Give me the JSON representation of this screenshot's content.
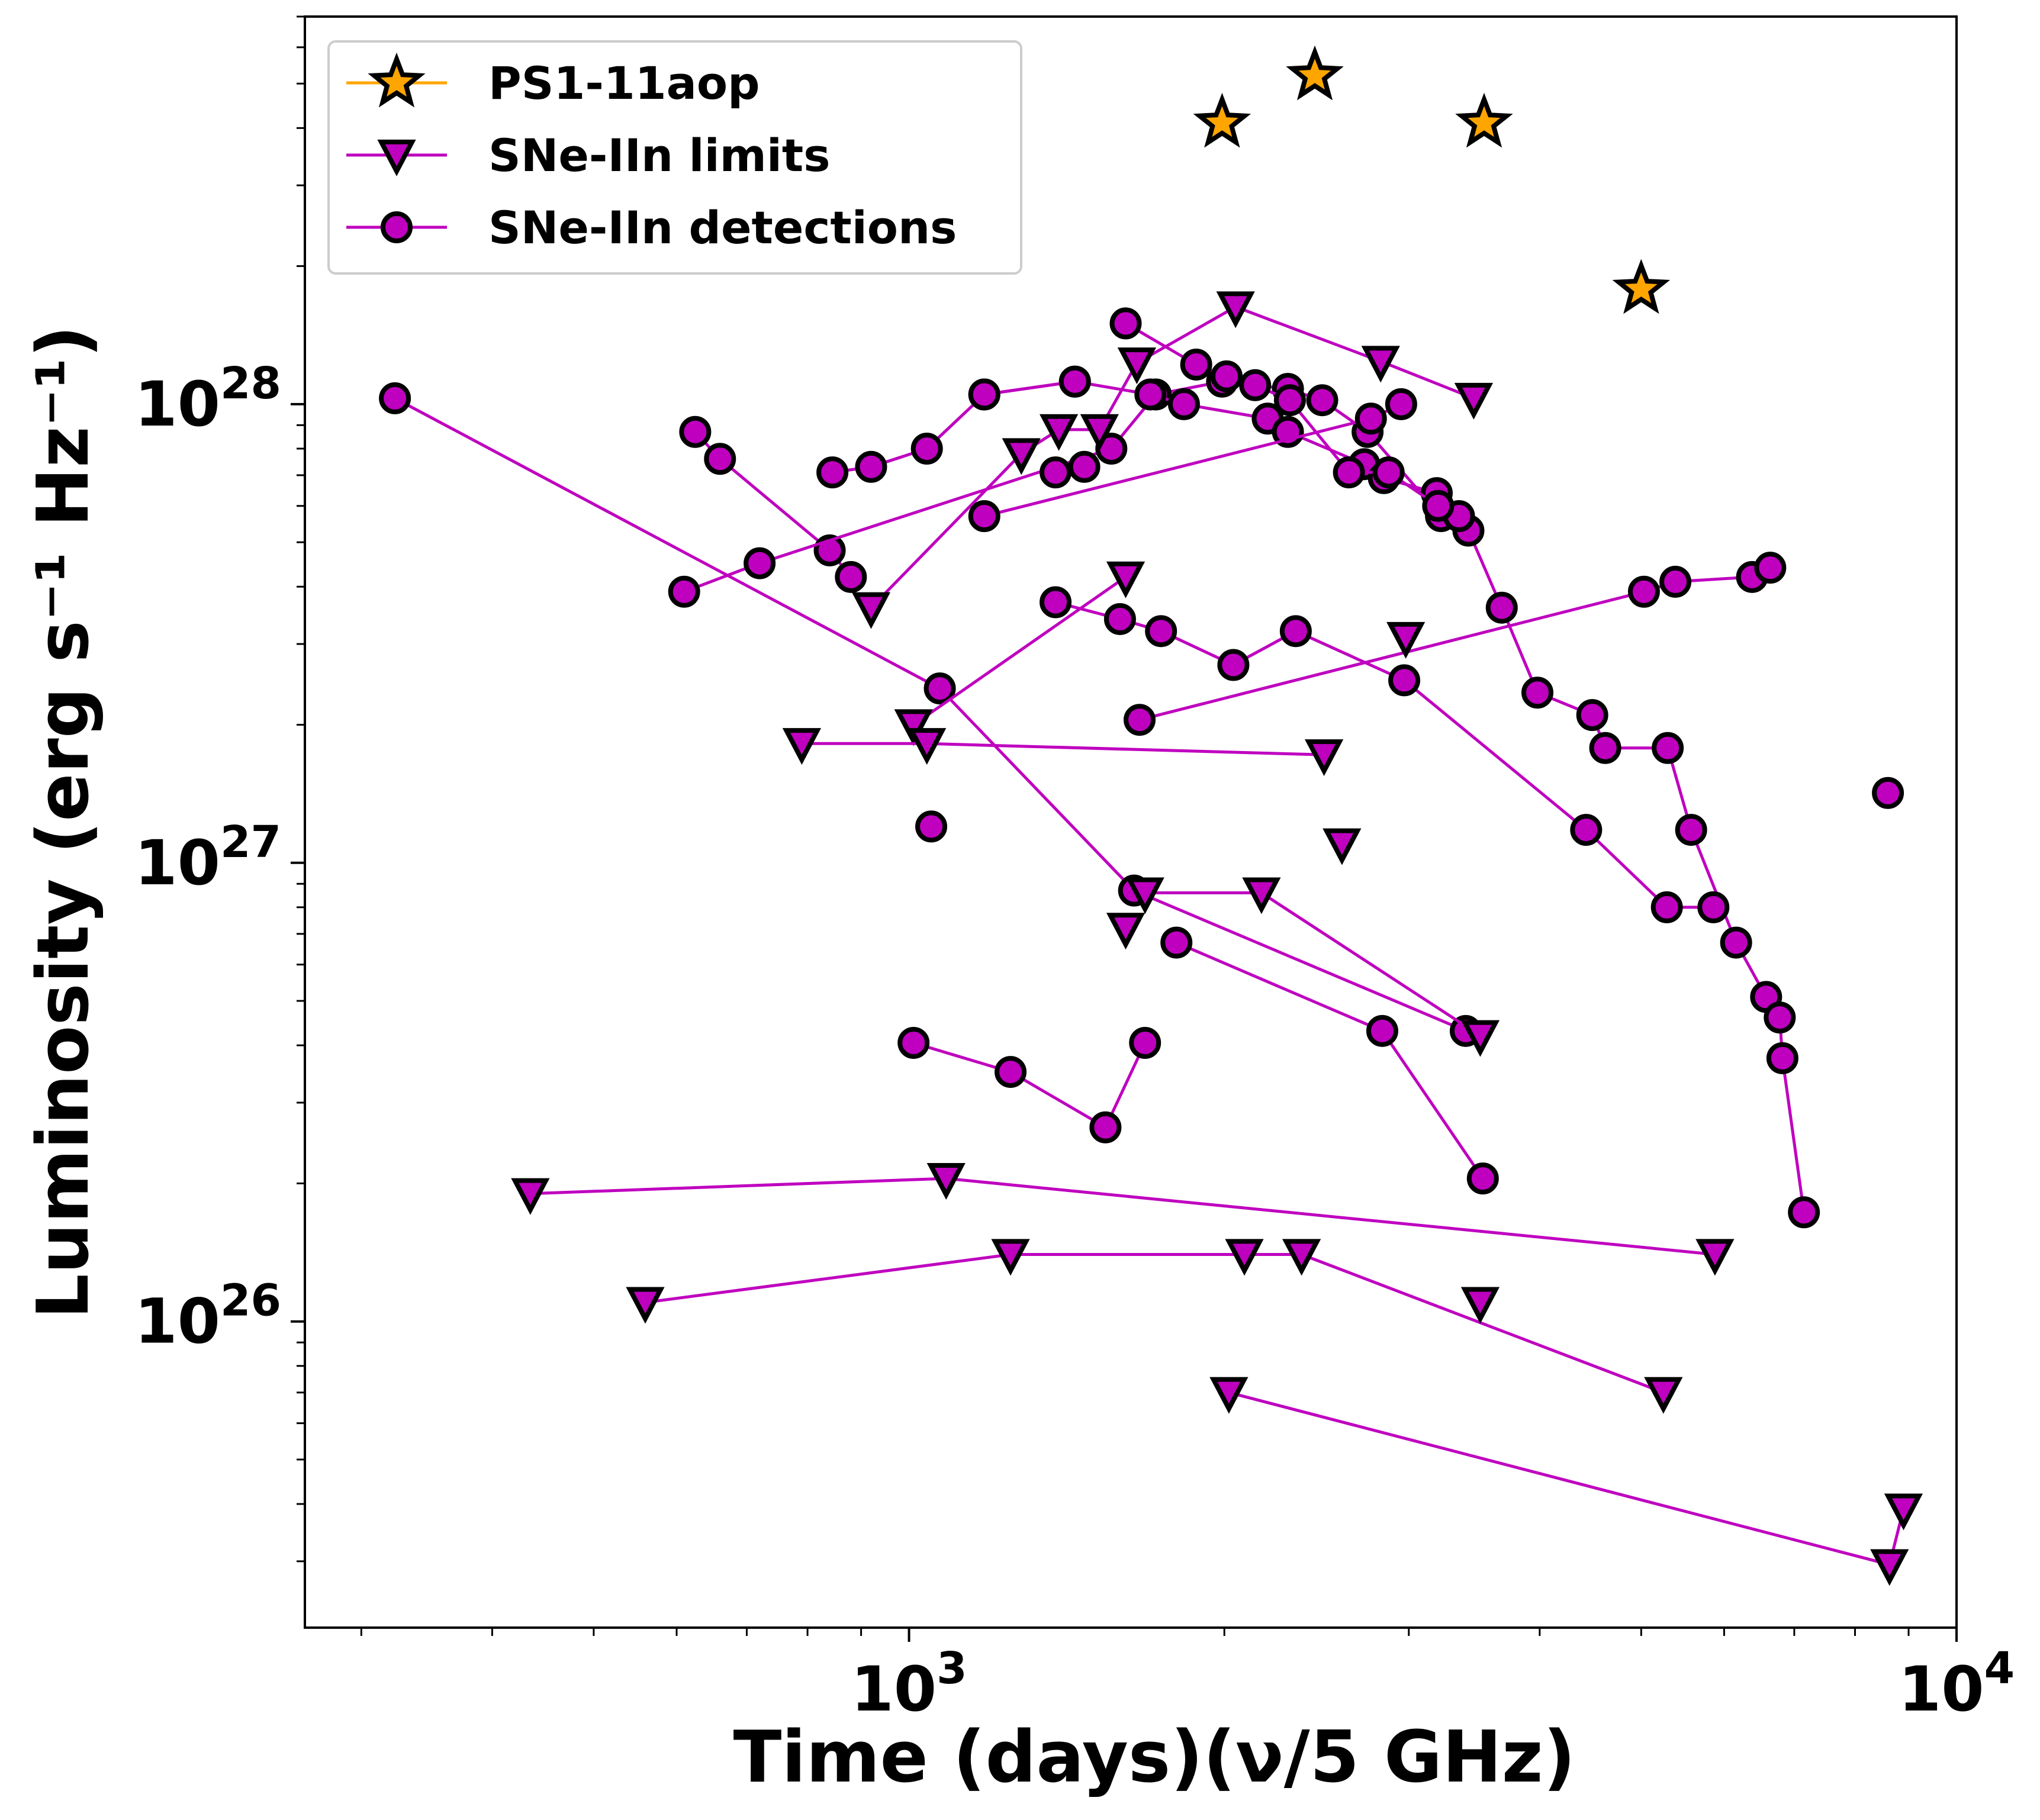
{
  "chart_data": {
    "type": "scatter",
    "title": "",
    "xlabel": "Time (days)(ν/5 GHz)",
    "ylabel": "Luminosity (erg s⁻¹ Hz⁻¹)",
    "xscale": "log",
    "yscale": "log",
    "xlim": [
      265,
      10000
    ],
    "ylim": [
      2.15e+25,
      7e+28
    ],
    "grid": false,
    "legend_position": "top-left",
    "xticks": [
      {
        "base": "10",
        "exp": "3",
        "value": 1000
      },
      {
        "base": "10",
        "exp": "4",
        "value": 10000
      }
    ],
    "yticks": [
      {
        "base": "10",
        "exp": "26",
        "value": 1e+26
      },
      {
        "base": "10",
        "exp": "27",
        "value": 1e+27
      },
      {
        "base": "10",
        "exp": "28",
        "value": 1e+28
      }
    ],
    "legend": [
      {
        "label": "PS1-11aop",
        "marker": "star",
        "color": "#FFA500"
      },
      {
        "label": "SNe-IIn limits",
        "marker": "triangle-down",
        "color": "#BF00BF"
      },
      {
        "label": "SNe-IIn detections",
        "marker": "circle",
        "color": "#BF00BF"
      }
    ],
    "colors": {
      "star_fill": "#FFA500",
      "sn_color": "#BF00BF",
      "edge": "#000000"
    },
    "series": [
      {
        "name": "PS1-11aop",
        "marker": "star",
        "points": [
          [
            1990,
            4.1e+28
          ],
          [
            2440,
            5.2e+28
          ],
          [
            3540,
            4.1e+28
          ],
          [
            5000,
            1.78e+28
          ]
        ]
      },
      {
        "marker": "circle",
        "points": [
          [
            323,
            1.03e+28
          ],
          [
            1070,
            2.4e+27
          ],
          [
            1640,
            8.7e+26
          ],
          [
            3400,
            4.3e+26
          ]
        ]
      },
      {
        "marker": "circle",
        "points": [
          [
            625,
            8.7e+27
          ],
          [
            660,
            7.6e+27
          ],
          [
            840,
            4.8e+27
          ],
          [
            880,
            4.2e+27
          ]
        ]
      },
      {
        "marker": "mixed",
        "points": [
          [
            610,
            3.9e+27,
            "c"
          ],
          [
            720,
            4.5e+27,
            "c"
          ],
          [
            1560,
            8e+27,
            "c"
          ],
          [
            1720,
            1.05e+28,
            "c"
          ],
          [
            1990,
            1.12e+28,
            "c"
          ],
          [
            2300,
            1.08e+28,
            "c"
          ],
          [
            2480,
            1.02e+28,
            "c"
          ],
          [
            2740,
            8.7e+27,
            "c"
          ],
          [
            3220,
            5.7e+27,
            "c"
          ],
          [
            3420,
            5.3e+27,
            "c"
          ],
          [
            3680,
            3.6e+27,
            "c"
          ],
          [
            3980,
            2.35e+27,
            "c"
          ],
          [
            4490,
            2.1e+27,
            "c"
          ],
          [
            4620,
            1.78e+27,
            "c"
          ],
          [
            5300,
            1.78e+27,
            "c"
          ],
          [
            5580,
            1.18e+27,
            "c"
          ],
          [
            6160,
            6.7e+26,
            "c"
          ],
          [
            6580,
            5.1e+26,
            "c"
          ],
          [
            6780,
            4.6e+26,
            "c"
          ],
          [
            6820,
            3.75e+26,
            "c"
          ],
          [
            7150,
            1.73e+26,
            "c"
          ]
        ]
      },
      {
        "marker": "mixed",
        "points": [
          [
            1180,
            1.05e+28,
            "c"
          ],
          [
            1440,
            1.12e+28,
            "c"
          ],
          [
            1700,
            1.05e+28,
            "c"
          ],
          [
            1830,
            1e+28,
            "c"
          ],
          [
            2200,
            9.3e+27,
            "c"
          ],
          [
            2300,
            8.7e+27,
            "c"
          ],
          [
            2720,
            7.4e+27,
            "c"
          ],
          [
            2840,
            6.9e+27,
            "c"
          ],
          [
            3190,
            6.4e+27,
            "c"
          ],
          [
            3350,
            5.7e+27,
            "c"
          ]
        ]
      },
      {
        "marker": "mixed",
        "points": [
          [
            845,
            7.1e+27,
            "c"
          ],
          [
            920,
            7.3e+27,
            "c"
          ],
          [
            1040,
            8e+27,
            "c"
          ],
          [
            1180,
            1.05e+28,
            "c"
          ],
          [
            1440,
            1.12e+28,
            "c"
          ]
        ]
      },
      {
        "marker": "mixed",
        "points": [
          [
            920,
            3.6e+27,
            "t"
          ],
          [
            1280,
            7.8e+27,
            "t"
          ],
          [
            1390,
            8.8e+27,
            "t"
          ],
          [
            1520,
            8.8e+27,
            "t"
          ],
          [
            1650,
            1.23e+28,
            "t"
          ],
          [
            2050,
            1.63e+28,
            "t"
          ],
          [
            2820,
            1.24e+28,
            "t"
          ],
          [
            3460,
            1.03e+28,
            "t"
          ]
        ]
      },
      {
        "marker": "mixed",
        "points": [
          [
            1610,
            1.5e+28,
            "c"
          ],
          [
            1880,
            1.22e+28,
            "c"
          ],
          [
            2010,
            1.15e+28,
            "c"
          ],
          [
            2140,
            1.1e+28,
            "c"
          ],
          [
            2310,
            1.02e+28,
            "c"
          ],
          [
            2630,
            7.1e+27,
            "c"
          ],
          [
            2870,
            7.1e+27,
            "c"
          ],
          [
            3200,
            6e+27,
            "c"
          ]
        ]
      },
      {
        "marker": "mixed",
        "points": [
          [
            1180,
            5.7e+27,
            "c"
          ],
          [
            2760,
            9.3e+27,
            "c"
          ],
          [
            2950,
            1e+28,
            "c"
          ]
        ]
      },
      {
        "marker": "mixed",
        "points": [
          [
            1470,
            7.3e+27,
            "c"
          ],
          [
            1380,
            7.1e+27,
            "c"
          ]
        ]
      },
      {
        "marker": "mixed",
        "points": [
          [
            1010,
            2e+27,
            "t"
          ],
          [
            1610,
            4.2e+27,
            "t"
          ]
        ]
      },
      {
        "marker": "mixed",
        "points": [
          [
            1380,
            3.7e+27,
            "c"
          ],
          [
            1590,
            3.4e+27,
            "c"
          ],
          [
            1740,
            3.2e+27,
            "c"
          ],
          [
            2040,
            2.7e+27,
            "c"
          ],
          [
            2340,
            3.2e+27,
            "c"
          ],
          [
            2970,
            2.5e+27,
            "c"
          ],
          [
            4430,
            1.18e+27,
            "c"
          ],
          [
            5290,
            8e+26,
            "c"
          ],
          [
            5860,
            8e+26,
            "c"
          ]
        ]
      },
      {
        "marker": "mixed",
        "points": [
          [
            1660,
            2.05e+27,
            "c"
          ],
          [
            5030,
            3.9e+27,
            "c"
          ],
          [
            5390,
            4.1e+27,
            "c"
          ],
          [
            6380,
            4.2e+27,
            "c"
          ],
          [
            6640,
            4.4e+27,
            "c"
          ]
        ]
      },
      {
        "marker": "mixed",
        "points": [
          [
            790,
            1.82e+27,
            "t"
          ],
          [
            1040,
            1.82e+27,
            "t"
          ],
          [
            2490,
            1.72e+27,
            "t"
          ]
        ]
      },
      {
        "marker": "mixed",
        "points": [
          [
            1680,
            8.6e+26,
            "t"
          ],
          [
            2170,
            8.6e+26,
            "t"
          ],
          [
            3510,
            4.2e+26,
            "t"
          ]
        ]
      },
      {
        "marker": "mixed",
        "points": [
          [
            1800,
            6.7e+26,
            "c"
          ],
          [
            2830,
            4.3e+26,
            "c"
          ],
          [
            3530,
            2.05e+26,
            "c"
          ]
        ]
      },
      {
        "marker": "mixed",
        "points": [
          [
            1010,
            4.05e+26,
            "c"
          ],
          [
            1250,
            3.5e+26,
            "c"
          ],
          [
            1540,
            2.65e+26,
            "c"
          ],
          [
            1680,
            4.05e+26,
            "c"
          ]
        ]
      },
      {
        "marker": "mixed",
        "points": [
          [
            435,
            1.9e+26,
            "t"
          ],
          [
            1085,
            2.05e+26,
            "t"
          ],
          [
            5880,
            1.4e+26,
            "t"
          ]
        ]
      },
      {
        "marker": "mixed",
        "points": [
          [
            560,
            1.1e+26,
            "t"
          ],
          [
            1250,
            1.4e+26,
            "t"
          ],
          [
            2090,
            1.4e+26,
            "t"
          ],
          [
            2370,
            1.4e+26,
            "t"
          ],
          [
            5250,
            7e+25,
            "t"
          ]
        ]
      },
      {
        "marker": "mixed",
        "points": [
          [
            2020,
            7e+25,
            "t"
          ],
          [
            8630,
            2.95e+25,
            "t"
          ],
          [
            8900,
            3.9e+25,
            "t"
          ]
        ]
      },
      {
        "marker": "mixed",
        "points": [
          [
            1050,
            1.2e+27,
            "c"
          ]
        ]
      },
      {
        "marker": "mixed",
        "points": [
          [
            8600,
            1.42e+27,
            "c"
          ]
        ]
      },
      {
        "marker": "mixed",
        "points": [
          [
            2590,
            1.1e+27,
            "t"
          ]
        ]
      },
      {
        "marker": "mixed",
        "points": [
          [
            2980,
            3.1e+27,
            "t"
          ]
        ]
      },
      {
        "marker": "mixed",
        "points": [
          [
            1610,
            7.2e+26,
            "t"
          ]
        ]
      },
      {
        "marker": "mixed",
        "points": [
          [
            3510,
            1.1e+26,
            "t"
          ]
        ]
      }
    ]
  }
}
